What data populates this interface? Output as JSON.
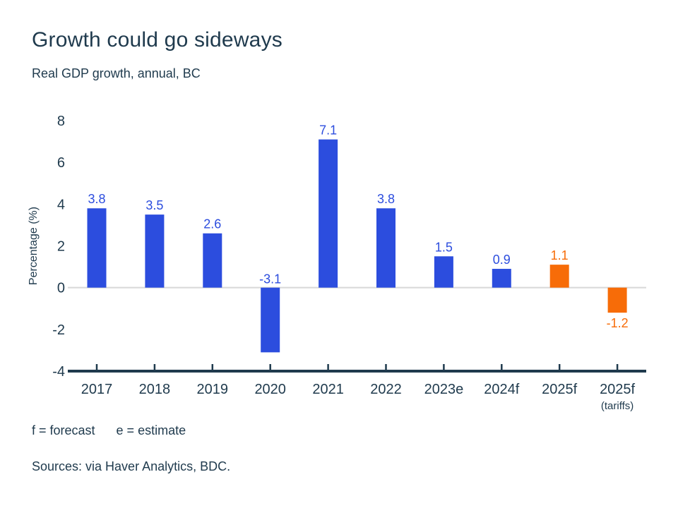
{
  "header": {
    "title": "Growth could go sideways",
    "subtitle": "Real GDP growth, annual, BC"
  },
  "chart_data": {
    "type": "bar",
    "title": "Growth could go sideways",
    "subtitle": "Real GDP growth, annual, BC",
    "xlabel": "",
    "ylabel": "Percentage (%)",
    "ylim": [
      -4,
      8
    ],
    "yticks": [
      8,
      6,
      4,
      2,
      0,
      -2,
      -4
    ],
    "grid": "zero-line-only",
    "legend": "none",
    "categories": [
      "2017",
      "2018",
      "2019",
      "2020",
      "2021",
      "2022",
      "2023e",
      "2024f",
      "2025f",
      "2025f"
    ],
    "category_sublabels": {
      "9": "(tariffs)"
    },
    "values": [
      3.8,
      3.5,
      2.6,
      -3.1,
      7.1,
      3.8,
      1.5,
      0.9,
      1.1,
      -1.2
    ],
    "value_labels": [
      "3.8",
      "3.5",
      "2.6",
      "-3.1",
      "7.1",
      "3.8",
      "1.5",
      "0.9",
      "1.1",
      "-1.2"
    ],
    "value_label_positions": [
      "above-bar",
      "above-bar",
      "above-bar",
      "above-baseline",
      "above-bar",
      "above-bar",
      "above-bar",
      "above-bar",
      "above-bar",
      "below-bar"
    ],
    "bar_color_keys": [
      "blue",
      "blue",
      "blue",
      "blue",
      "blue",
      "blue",
      "blue",
      "blue",
      "orange",
      "orange"
    ],
    "colors": {
      "blue": "#2C4DDE",
      "orange": "#F76C08",
      "axis": "#1F3A4D",
      "zero_line": "#D8D8D8",
      "label_text": "#1F3A4D"
    }
  },
  "footer": {
    "notes": [
      "f = forecast",
      "e = estimate"
    ],
    "sources": "Sources: via Haver Analytics, BDC."
  }
}
